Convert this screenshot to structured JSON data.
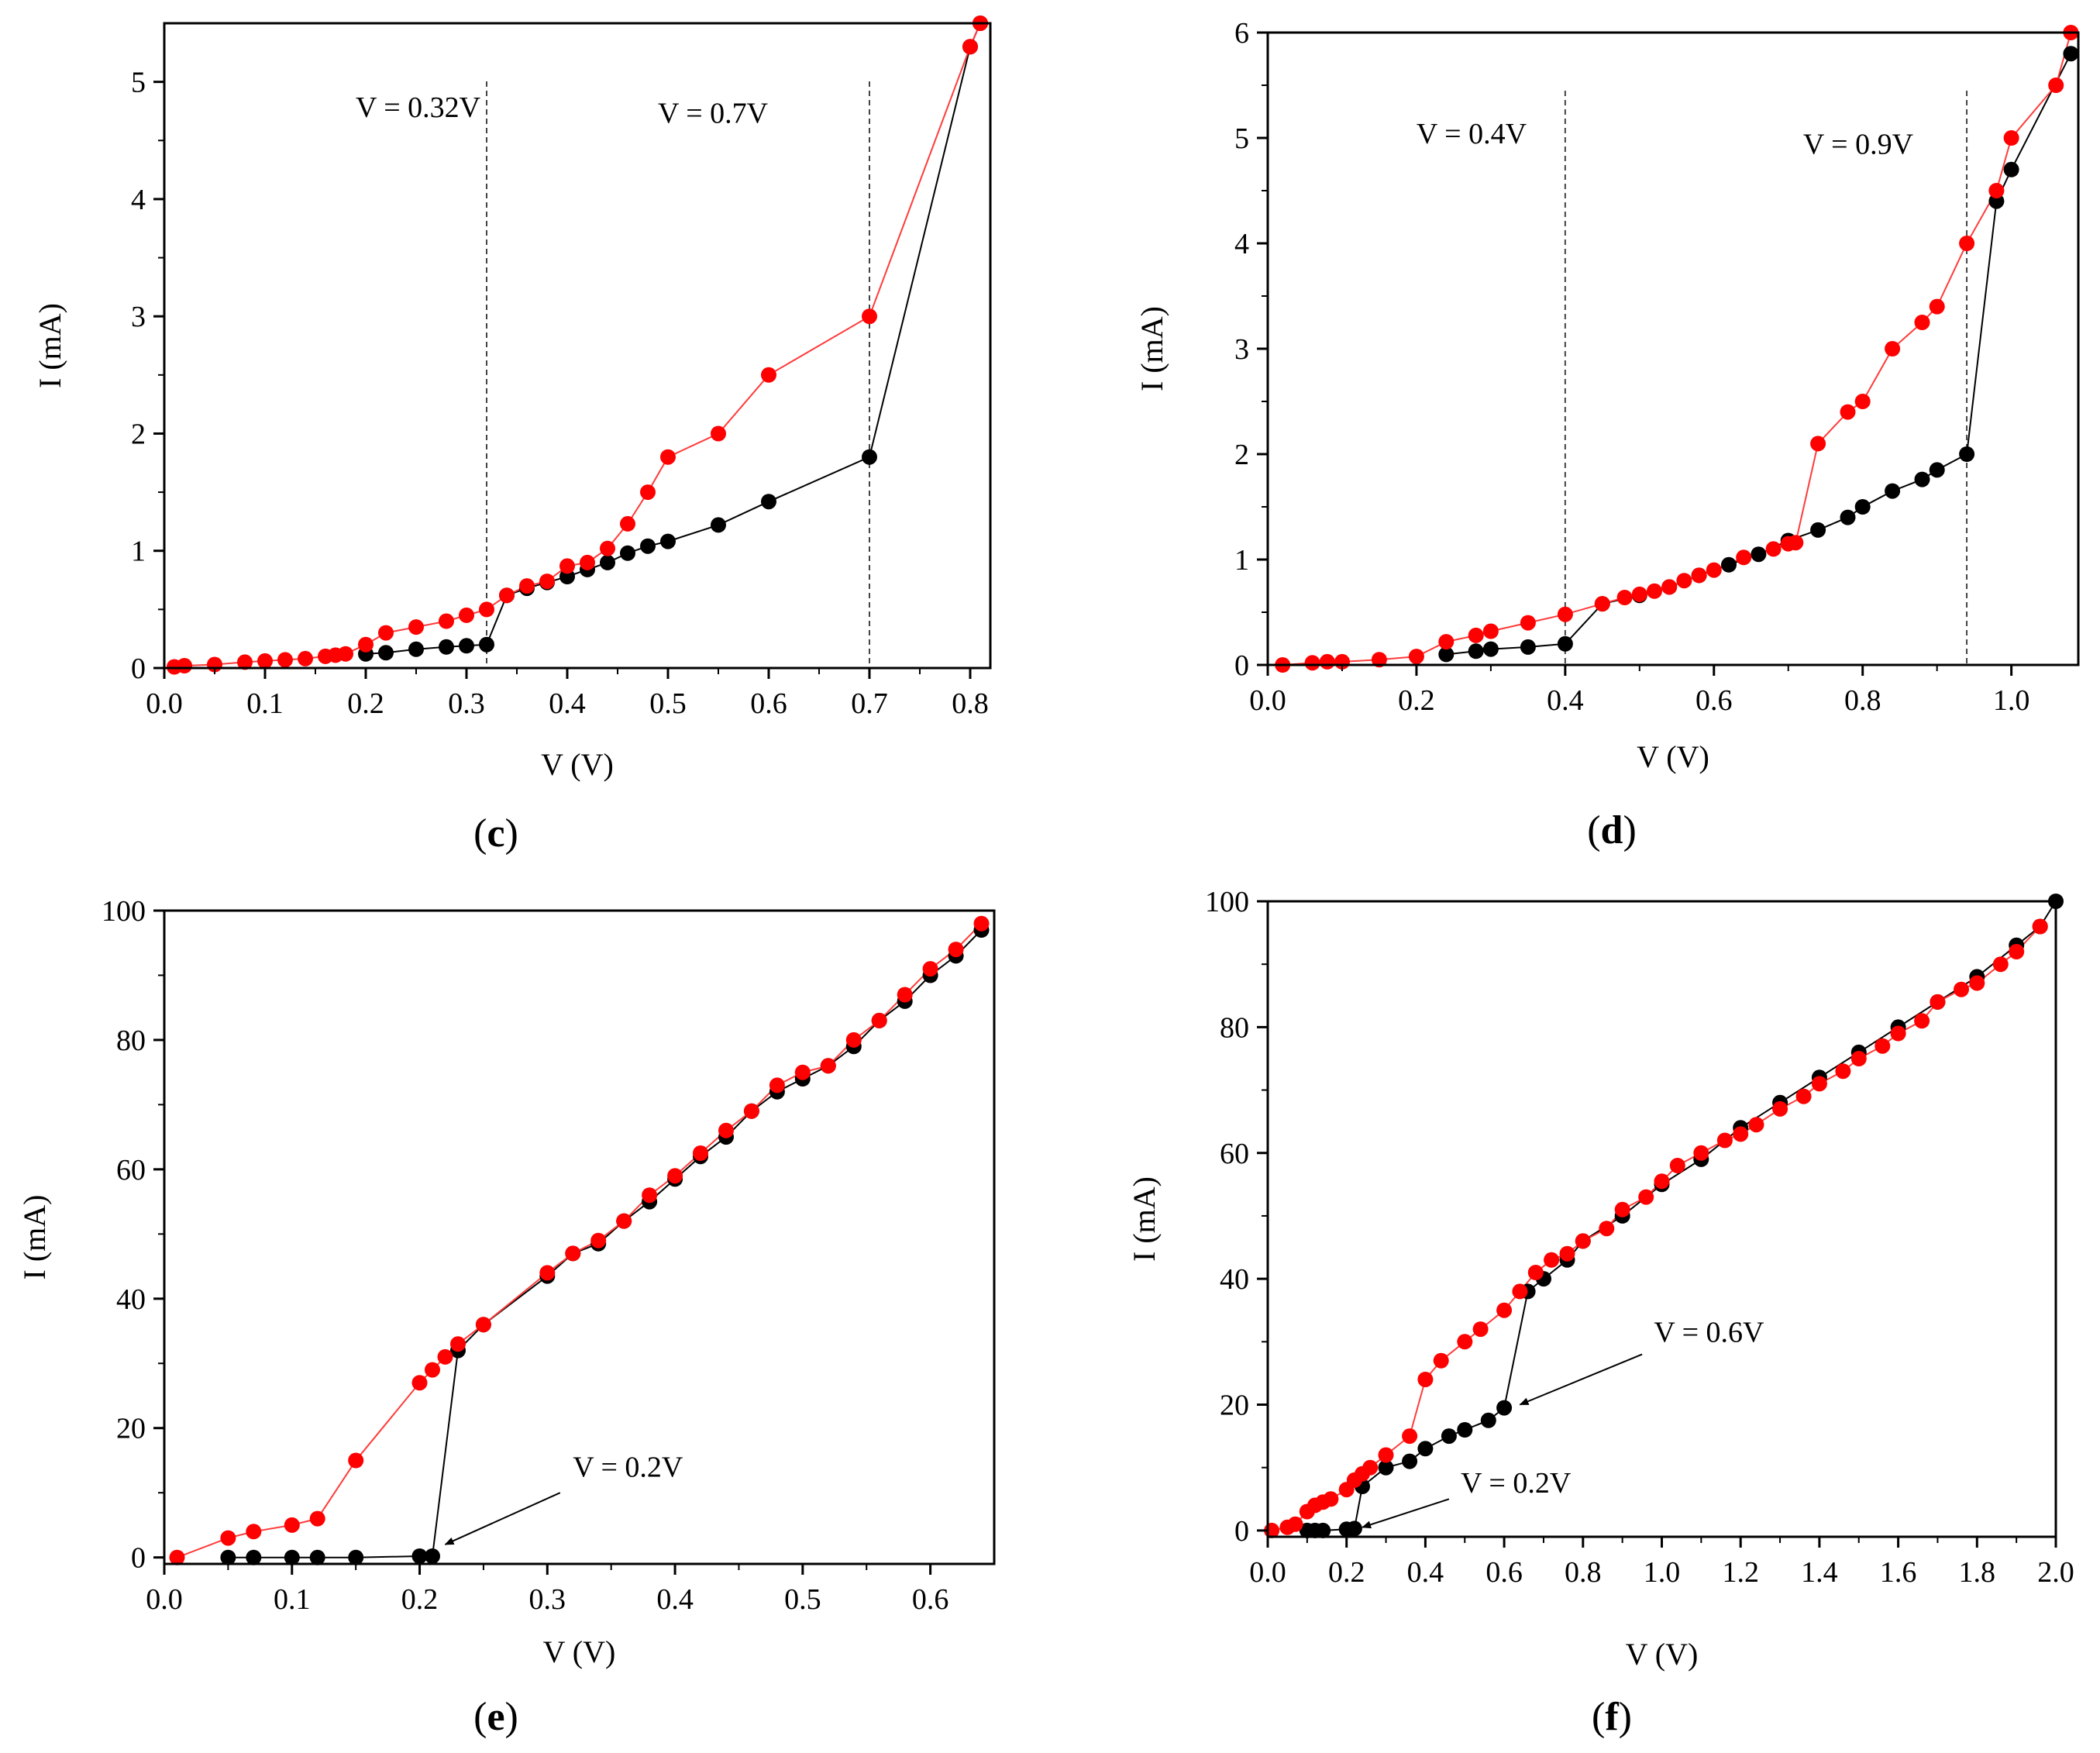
{
  "figure": {
    "colors": {
      "dark_series": "#000000",
      "red_series": "#ff0000",
      "red_line": "#ff3b3b"
    }
  },
  "chart_data": [
    {
      "id": "c",
      "panel_label": "c",
      "type": "line",
      "xlabel": "V (V)",
      "ylabel": "I (mA)",
      "xlim": [
        0,
        0.82
      ],
      "ylim": [
        0,
        5.5
      ],
      "xticks": [
        0,
        0.1,
        0.2,
        0.3,
        0.4,
        0.5,
        0.6,
        0.7,
        0.8
      ],
      "xtick_labels": [
        "0.0",
        "0.1",
        "0.2",
        "0.3",
        "0.4",
        "0.5",
        "0.6",
        "0.7",
        "0.8"
      ],
      "yticks": [
        0,
        1,
        2,
        3,
        4,
        5
      ],
      "ytick_labels": [
        "0",
        "1",
        "2",
        "3",
        "4",
        "5"
      ],
      "vlines": [
        0.32,
        0.7
      ],
      "annotations": [
        {
          "text": "V = 0.32V",
          "x": 0.19,
          "y": 4.7
        },
        {
          "text": "V = 0.7V",
          "x": 0.49,
          "y": 4.65
        }
      ],
      "arrows": [],
      "series": [
        {
          "name": "black",
          "color": "#000000",
          "x": [
            0.2,
            0.22,
            0.25,
            0.28,
            0.3,
            0.32,
            0.34,
            0.36,
            0.38,
            0.4,
            0.42,
            0.44,
            0.46,
            0.48,
            0.5,
            0.55,
            0.6,
            0.7,
            0.8,
            0.81
          ],
          "y": [
            0.12,
            0.13,
            0.16,
            0.18,
            0.19,
            0.2,
            0.62,
            0.68,
            0.73,
            0.78,
            0.84,
            0.9,
            0.98,
            1.04,
            1.08,
            1.22,
            1.42,
            1.8,
            5.3,
            5.5
          ]
        },
        {
          "name": "red",
          "color": "#ff0000",
          "x": [
            0.01,
            0.02,
            0.05,
            0.08,
            0.1,
            0.12,
            0.14,
            0.16,
            0.17,
            0.18,
            0.2,
            0.22,
            0.25,
            0.28,
            0.3,
            0.32,
            0.34,
            0.36,
            0.38,
            0.4,
            0.42,
            0.44,
            0.46,
            0.48,
            0.5,
            0.55,
            0.6,
            0.7,
            0.8,
            0.81
          ],
          "y": [
            0.01,
            0.02,
            0.03,
            0.05,
            0.06,
            0.07,
            0.08,
            0.1,
            0.11,
            0.12,
            0.2,
            0.3,
            0.35,
            0.4,
            0.45,
            0.5,
            0.62,
            0.7,
            0.74,
            0.87,
            0.9,
            1.02,
            1.23,
            1.5,
            1.8,
            2.0,
            2.5,
            3.0,
            5.3,
            5.5
          ]
        }
      ]
    },
    {
      "id": "d",
      "panel_label": "d",
      "type": "line",
      "xlabel": "V (V)",
      "ylabel": "I (mA)",
      "xlim": [
        0,
        1.09
      ],
      "ylim": [
        0,
        6
      ],
      "xticks": [
        0,
        0.2,
        0.4,
        0.6,
        0.8,
        1.0
      ],
      "xtick_labels": [
        "0.0",
        "0.2",
        "0.4",
        "0.6",
        "0.8",
        "1.0"
      ],
      "yticks": [
        0,
        1,
        2,
        3,
        4,
        5,
        6
      ],
      "ytick_labels": [
        "0",
        "1",
        "2",
        "3",
        "4",
        "5",
        "6"
      ],
      "vlines": [
        0.4,
        0.94
      ],
      "annotations": [
        {
          "text": "V = 0.4V",
          "x": 0.2,
          "y": 4.95
        },
        {
          "text": "V = 0.9V",
          "x": 0.72,
          "y": 4.85
        }
      ],
      "arrows": [],
      "series": [
        {
          "name": "black",
          "color": "#000000",
          "x": [
            0.24,
            0.28,
            0.3,
            0.35,
            0.4,
            0.45,
            0.5,
            0.54,
            0.58,
            0.62,
            0.66,
            0.7,
            0.74,
            0.78,
            0.8,
            0.84,
            0.88,
            0.9,
            0.94,
            0.98,
            1.0,
            1.08
          ],
          "y": [
            0.1,
            0.13,
            0.15,
            0.17,
            0.2,
            0.58,
            0.66,
            0.74,
            0.85,
            0.95,
            1.05,
            1.18,
            1.28,
            1.4,
            1.5,
            1.65,
            1.76,
            1.85,
            2.0,
            4.4,
            4.7,
            5.8
          ]
        },
        {
          "name": "red",
          "color": "#ff0000",
          "x": [
            0.02,
            0.06,
            0.08,
            0.1,
            0.15,
            0.2,
            0.24,
            0.28,
            0.3,
            0.35,
            0.4,
            0.45,
            0.48,
            0.5,
            0.52,
            0.54,
            0.56,
            0.58,
            0.6,
            0.64,
            0.68,
            0.7,
            0.71,
            0.74,
            0.78,
            0.8,
            0.84,
            0.88,
            0.9,
            0.94,
            0.98,
            1.0,
            1.06,
            1.08
          ],
          "y": [
            0.0,
            0.02,
            0.03,
            0.03,
            0.05,
            0.08,
            0.22,
            0.28,
            0.32,
            0.4,
            0.48,
            0.58,
            0.64,
            0.67,
            0.7,
            0.74,
            0.8,
            0.85,
            0.9,
            1.02,
            1.1,
            1.15,
            1.16,
            2.1,
            2.4,
            2.5,
            3.0,
            3.25,
            3.4,
            4.0,
            4.5,
            5.0,
            5.5,
            6.0
          ]
        }
      ]
    },
    {
      "id": "e",
      "panel_label": "e",
      "type": "line",
      "xlabel": "V (V)",
      "ylabel": "I (mA)",
      "xlim": [
        0,
        0.65
      ],
      "ylim": [
        -1,
        100
      ],
      "xticks": [
        0,
        0.1,
        0.2,
        0.3,
        0.4,
        0.5,
        0.6
      ],
      "xtick_labels": [
        "0.0",
        "0.1",
        "0.2",
        "0.3",
        "0.4",
        "0.5",
        "0.6"
      ],
      "yticks": [
        0,
        20,
        40,
        60,
        80,
        100
      ],
      "ytick_labels": [
        "0",
        "20",
        "40",
        "60",
        "80",
        "100"
      ],
      "vlines": [],
      "annotations": [
        {
          "text": "V = 0.2V",
          "x": 0.32,
          "y": 12.5
        }
      ],
      "arrows": [
        {
          "from": [
            0.31,
            10
          ],
          "to": [
            0.22,
            2
          ]
        }
      ],
      "series": [
        {
          "name": "black",
          "color": "#000000",
          "x": [
            0.05,
            0.07,
            0.1,
            0.12,
            0.15,
            0.2,
            0.21,
            0.23,
            0.25,
            0.3,
            0.32,
            0.34,
            0.36,
            0.38,
            0.4,
            0.42,
            0.44,
            0.46,
            0.48,
            0.5,
            0.52,
            0.54,
            0.56,
            0.58,
            0.6,
            0.62,
            0.64
          ],
          "y": [
            0.0,
            0.0,
            0.0,
            0.0,
            0.0,
            0.2,
            0.2,
            32,
            36,
            43.5,
            47,
            48.5,
            52,
            55,
            58.5,
            62,
            65,
            69,
            72,
            74,
            76,
            79,
            83,
            86,
            90,
            93,
            97
          ]
        },
        {
          "name": "red",
          "color": "#ff0000",
          "x": [
            0.01,
            0.05,
            0.07,
            0.1,
            0.12,
            0.15,
            0.2,
            0.21,
            0.22,
            0.23,
            0.25,
            0.3,
            0.32,
            0.34,
            0.36,
            0.38,
            0.4,
            0.42,
            0.44,
            0.46,
            0.48,
            0.5,
            0.52,
            0.54,
            0.56,
            0.58,
            0.6,
            0.62,
            0.64
          ],
          "y": [
            0.0,
            3,
            4,
            5,
            6,
            15,
            27,
            29,
            31,
            33,
            36,
            44,
            47,
            49,
            52,
            56,
            59,
            62.5,
            66,
            69,
            73,
            75,
            76,
            80,
            83,
            87,
            91,
            94,
            98
          ]
        }
      ]
    },
    {
      "id": "f",
      "panel_label": "f",
      "type": "line",
      "xlabel": "V (V)",
      "ylabel": "I (mA)",
      "xlim": [
        0,
        2.0
      ],
      "ylim": [
        -1,
        100
      ],
      "xticks": [
        0,
        0.2,
        0.4,
        0.6,
        0.8,
        1.0,
        1.2,
        1.4,
        1.6,
        1.8,
        2.0
      ],
      "xtick_labels": [
        "0.0",
        "0.2",
        "0.4",
        "0.6",
        "0.8",
        "1.0",
        "1.2",
        "1.4",
        "1.6",
        "1.8",
        "2.0"
      ],
      "yticks": [
        0,
        20,
        40,
        60,
        80,
        100
      ],
      "ytick_labels": [
        "0",
        "20",
        "40",
        "60",
        "80",
        "100"
      ],
      "vlines": [],
      "annotations": [
        {
          "text": "V = 0.6V",
          "x": 0.98,
          "y": 30
        },
        {
          "text": "V = 0.2V",
          "x": 0.49,
          "y": 6
        }
      ],
      "arrows": [
        {
          "from": [
            0.95,
            28
          ],
          "to": [
            0.64,
            20
          ]
        },
        {
          "from": [
            0.46,
            5
          ],
          "to": [
            0.24,
            0.5
          ]
        }
      ],
      "series": [
        {
          "name": "black",
          "color": "#000000",
          "x": [
            0.1,
            0.12,
            0.14,
            0.2,
            0.22,
            0.24,
            0.3,
            0.36,
            0.4,
            0.46,
            0.5,
            0.56,
            0.6,
            0.66,
            0.7,
            0.76,
            0.8,
            0.9,
            1.0,
            1.1,
            1.2,
            1.3,
            1.4,
            1.5,
            1.6,
            1.7,
            1.8,
            1.9,
            1.96,
            2.0
          ],
          "y": [
            0.0,
            0.0,
            0.0,
            0.2,
            0.3,
            7,
            10,
            11,
            13,
            15,
            16,
            17.5,
            19.5,
            38,
            40,
            43,
            46,
            50,
            55,
            59,
            64,
            68,
            72,
            76,
            80,
            84,
            88,
            93,
            96,
            100
          ]
        },
        {
          "name": "red",
          "color": "#ff0000",
          "x": [
            0.01,
            0.05,
            0.07,
            0.1,
            0.12,
            0.14,
            0.16,
            0.2,
            0.22,
            0.24,
            0.26,
            0.3,
            0.36,
            0.4,
            0.44,
            0.5,
            0.54,
            0.6,
            0.64,
            0.68,
            0.72,
            0.76,
            0.8,
            0.86,
            0.9,
            0.96,
            1.0,
            1.04,
            1.1,
            1.16,
            1.2,
            1.24,
            1.3,
            1.36,
            1.4,
            1.46,
            1.5,
            1.56,
            1.6,
            1.66,
            1.7,
            1.76,
            1.8,
            1.86,
            1.9,
            1.96
          ],
          "y": [
            0.0,
            0.5,
            1,
            3,
            4,
            4.5,
            5,
            6.5,
            8,
            9,
            10,
            12,
            15,
            24,
            27,
            30,
            32,
            35,
            38,
            41,
            43,
            44,
            46,
            48,
            51,
            53,
            55.5,
            58,
            60,
            62,
            63,
            64.5,
            67,
            69,
            71,
            73,
            75,
            77,
            79,
            81,
            84,
            86,
            87,
            90,
            92,
            96
          ]
        }
      ]
    }
  ]
}
